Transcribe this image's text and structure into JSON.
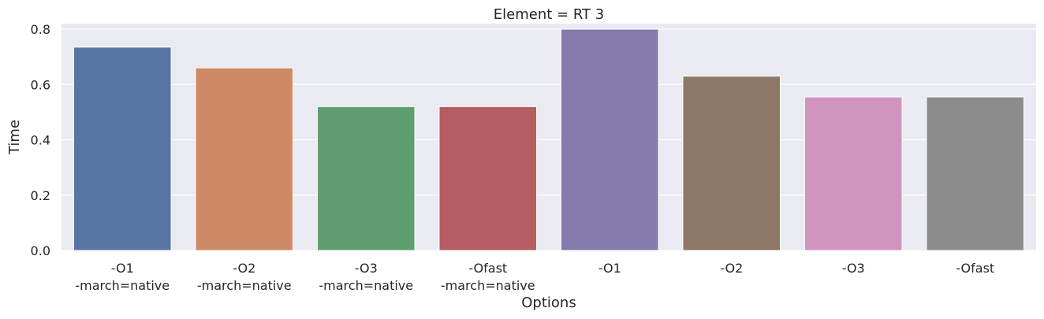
{
  "chart_data": {
    "type": "bar",
    "title": "Element = RT 3",
    "xlabel": "Options",
    "ylabel": "Time",
    "ylim": [
      0,
      0.82
    ],
    "yticks": [
      "0.0",
      "0.2",
      "0.4",
      "0.6",
      "0.8"
    ],
    "ytick_values": [
      0,
      0.2,
      0.4,
      0.6,
      0.8
    ],
    "grid": true,
    "categories": [
      [
        "-O1",
        "-march=native"
      ],
      [
        "-O2",
        "-march=native"
      ],
      [
        "-O3",
        "-march=native"
      ],
      [
        "-Ofast",
        "-march=native"
      ],
      [
        "-O1"
      ],
      [
        "-O2"
      ],
      [
        "-O3"
      ],
      [
        "-Ofast"
      ]
    ],
    "values": [
      0.735,
      0.66,
      0.52,
      0.52,
      0.8,
      0.63,
      0.555,
      0.555
    ],
    "colors": [
      "#5975a4",
      "#cc8963",
      "#5f9e6e",
      "#b55d60",
      "#857aab",
      "#8d7866",
      "#d095bf",
      "#8c8c8c"
    ],
    "background": "#eaeaf2"
  }
}
